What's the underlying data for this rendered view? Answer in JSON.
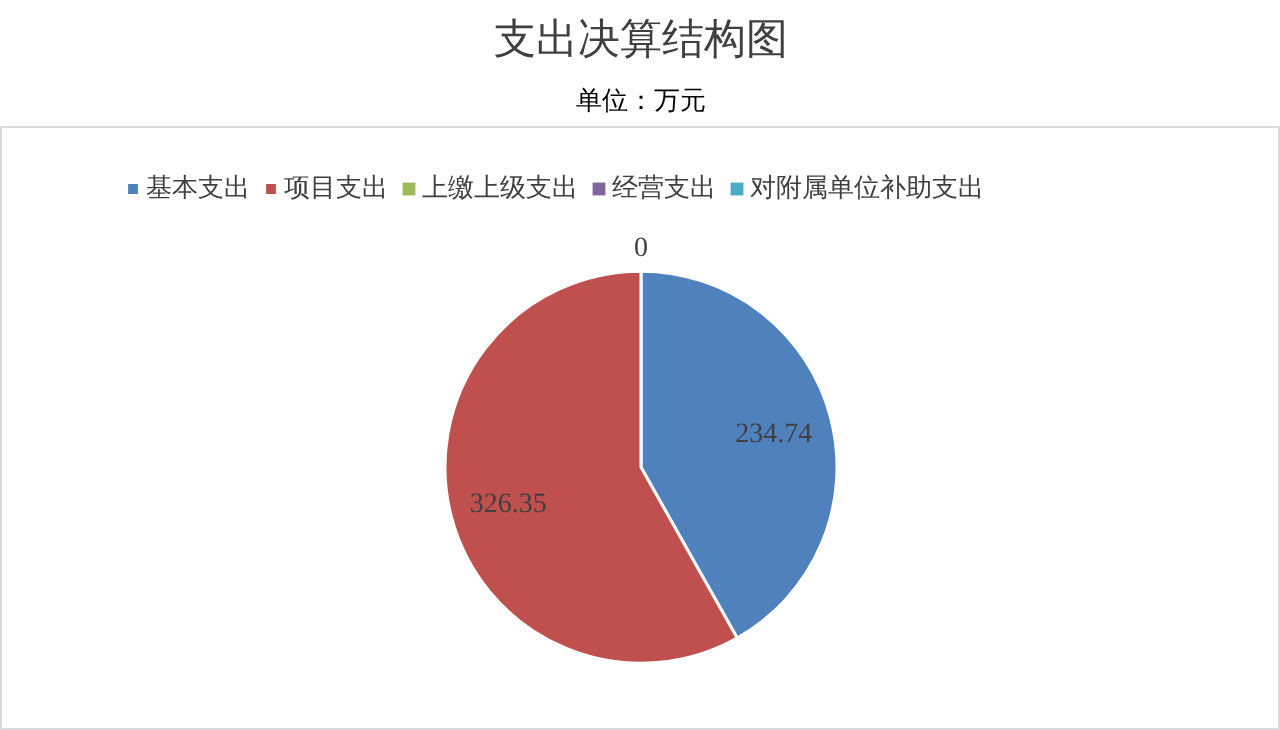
{
  "chart_data": {
    "type": "pie",
    "title": "支出决算结构图",
    "subtitle": "单位：万元",
    "categories": [
      "基本支出",
      "项目支出",
      "上缴上级支出",
      "经营支出",
      "对附属单位补助支出"
    ],
    "values": [
      234.74,
      326.35,
      0,
      0,
      0
    ],
    "colors": [
      "#4f81bd",
      "#c0504d",
      "#9bbb59",
      "#8064a2",
      "#4bacc6"
    ],
    "value_labels": [
      "234.74",
      "326.35",
      "0",
      null,
      null
    ],
    "legend": "top"
  }
}
